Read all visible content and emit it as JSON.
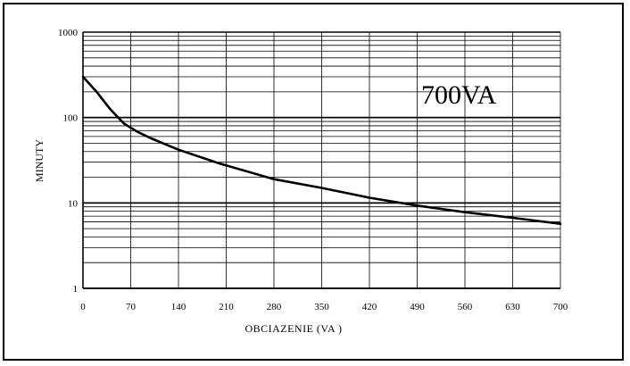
{
  "chart_data": {
    "type": "line",
    "title": "",
    "annotation": "700VA",
    "xlabel": "OBCIAZENIE  (VA )",
    "ylabel": "MINUTY",
    "xscale": "linear",
    "yscale": "log",
    "xlim": [
      0,
      700
    ],
    "ylim": [
      1,
      1000
    ],
    "x_ticks": [
      "0",
      "70",
      "140",
      "210",
      "280",
      "350",
      "420",
      "490",
      "560",
      "630",
      "700"
    ],
    "y_ticks": [
      "1",
      "10",
      "100",
      "1000"
    ],
    "grid": true,
    "series": [
      {
        "x": [
          0,
          20,
          40,
          60,
          80,
          100,
          140,
          200,
          280,
          350,
          420,
          490,
          560,
          630,
          700
        ],
        "y": [
          300,
          200,
          125,
          85,
          68,
          57,
          42,
          29,
          19,
          15,
          11.5,
          9.3,
          7.8,
          6.7,
          5.7
        ]
      }
    ]
  }
}
